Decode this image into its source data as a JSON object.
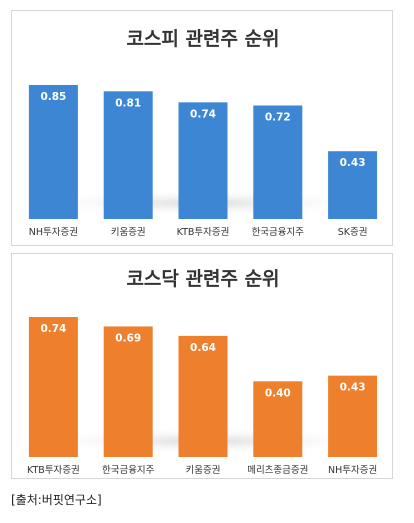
{
  "colors": {
    "kospi_bar": "#3D86D4",
    "kosdaq_bar": "#EE7F2D",
    "label_text": "#FFFFFF",
    "axis_text": "#333333"
  },
  "chart_data": [
    {
      "type": "bar",
      "title": "코스피 관련주 순위",
      "categories": [
        "NH투자증권",
        "키움증권",
        "KTB투자증권",
        "한국금융지주",
        "SK증권"
      ],
      "values": [
        0.85,
        0.81,
        0.74,
        0.72,
        0.43
      ],
      "value_labels": [
        "0.85",
        "0.81",
        "0.74",
        "0.72",
        "0.43"
      ],
      "ylim": [
        0,
        0.85
      ],
      "grid": false,
      "legend": "none"
    },
    {
      "type": "bar",
      "title": "코스닥 관련주 순위",
      "categories": [
        "KTB투자증권",
        "한국금융지주",
        "키움증권",
        "메리츠종금증권",
        "NH투자증권"
      ],
      "values": [
        0.74,
        0.69,
        0.64,
        0.4,
        0.43
      ],
      "value_labels": [
        "0.74",
        "0.69",
        "0.64",
        "0.40",
        "0.43"
      ],
      "ylim": [
        0,
        0.74
      ],
      "grid": false,
      "legend": "none"
    }
  ],
  "footer": {
    "source": "[출처:버핏연구소]"
  }
}
